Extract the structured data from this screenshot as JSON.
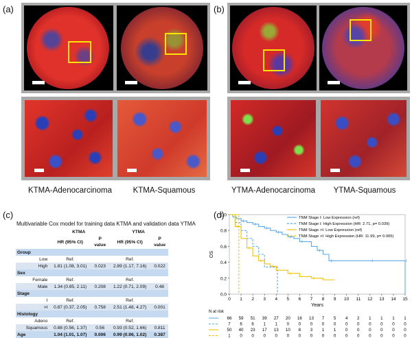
{
  "panels": {
    "a_label": "(a)",
    "b_label": "(b)",
    "c_label": "(c)",
    "d_label": "(d)",
    "captions": [
      "KTMA-Adenocarcinoma",
      "KTMA-Squamous",
      "YTMA-Adenocarcinoma",
      "YTMA-Squamous"
    ]
  },
  "colors": {
    "frame": "#a9a9a9",
    "highlight_box": "#ffe600",
    "table_group_row": "#c5d9f1",
    "table_shade_row": "#dbe5f1",
    "stage1_low": "#5aa9e6",
    "stage1_high": "#5aa9e6",
    "stage2_low": "#f2c200",
    "stage2_high": "#f2c200"
  },
  "table": {
    "title": "Multivariable Cox model for training data KTMA and validation data YTMA",
    "cohorts": [
      "KTMA",
      "YTMA"
    ],
    "col_headers": [
      "HR (95% CI)",
      "P value",
      "HR (95% CI)",
      "P value"
    ],
    "rows": [
      {
        "type": "group",
        "label": "Group"
      },
      {
        "type": "row",
        "label": "Low",
        "k_hr": "Ref.",
        "k_p": "",
        "y_hr": "Ref.",
        "y_p": ""
      },
      {
        "type": "row",
        "label": "High",
        "k_hr": "1.81 (1.08, 3.01)",
        "k_p": "0.023",
        "y_hr": "2.89 (1.17, 7.16)",
        "y_p": "0.022"
      },
      {
        "type": "group",
        "label": "Sex"
      },
      {
        "type": "row",
        "label": "Female",
        "k_hr": "Ref.",
        "k_p": "",
        "y_hr": "Ref.",
        "y_p": ""
      },
      {
        "type": "row",
        "label": "Male",
        "k_hr": "1.34 (0.85, 2.11)",
        "k_p": "0.208",
        "y_hr": "1.22 (0.71, 2.09)",
        "y_p": "0.48"
      },
      {
        "type": "group",
        "label": "Stage"
      },
      {
        "type": "row",
        "label": "I",
        "k_hr": "Ref.",
        "k_p": "",
        "y_hr": "Ref.",
        "y_p": ""
      },
      {
        "type": "row",
        "label": ">I",
        "k_hr": "0.87 (0.37, 2.05)",
        "k_p": "0.758",
        "y_hr": "2.51 (1.48, 4.27)",
        "y_p": "0.001"
      },
      {
        "type": "group",
        "label": "Histology"
      },
      {
        "type": "row",
        "label": "Adeno",
        "k_hr": "Ref.",
        "k_p": "",
        "y_hr": "Ref.",
        "y_p": ""
      },
      {
        "type": "row",
        "label": "Squamous",
        "k_hr": "0.88 (0.56, 1.37)",
        "k_p": "0.56",
        "y_hr": "0.93 (0.52, 1.66)",
        "y_p": "0.811"
      },
      {
        "type": "group",
        "label": "Age",
        "k_hr": "1.04 (1.01, 1.07)",
        "k_p": "0.006",
        "y_hr": "0.99 (0.96, 1.02)",
        "y_p": "0.387"
      }
    ]
  },
  "chart_data": {
    "type": "line",
    "title": "",
    "xlabel": "Years",
    "ylabel": "OS",
    "xlim": [
      0,
      15
    ],
    "ylim": [
      0,
      1.0
    ],
    "xticks": [
      0,
      1,
      2,
      3,
      4,
      5,
      6,
      7,
      8,
      9,
      10,
      11,
      12,
      13,
      14,
      15
    ],
    "yticks": [
      "0.0",
      "0.2",
      "0.4",
      "0.6",
      "0.8",
      "1.0"
    ],
    "legend_position": "top-right",
    "series": [
      {
        "name": "TNM Stage I: Low Expression (ref)",
        "style": "solid",
        "color": "#5aa9e6",
        "x": [
          0,
          0.3,
          0.6,
          1.0,
          1.5,
          2.0,
          2.5,
          3.0,
          3.5,
          4.0,
          4.5,
          5.0,
          5.5,
          6.0,
          7.0,
          7.5,
          8.0,
          8.5,
          10,
          12,
          14,
          14.9,
          15
        ],
        "y": [
          1.0,
          0.97,
          0.95,
          0.92,
          0.9,
          0.88,
          0.85,
          0.83,
          0.8,
          0.78,
          0.75,
          0.72,
          0.7,
          0.66,
          0.6,
          0.55,
          0.5,
          0.42,
          0.42,
          0.42,
          0.42,
          0.42,
          0.0
        ]
      },
      {
        "name": "TNM Stage I: High Expression (HR: 2.71, p= 0.039)",
        "style": "dashed",
        "color": "#5aa9e6",
        "x": [
          0,
          0.5,
          1.0,
          1.5,
          2.0,
          2.5,
          3.0,
          4.0,
          4.1
        ],
        "y": [
          1.0,
          0.9,
          0.8,
          0.7,
          0.6,
          0.5,
          0.34,
          0.34,
          0.0
        ]
      },
      {
        "name": "TNM Stage >I: Low Expression (ref)",
        "style": "solid",
        "color": "#f2c200",
        "x": [
          0,
          0.5,
          1.0,
          1.5,
          2.0,
          2.5,
          3.0,
          3.5,
          4.0,
          5.0,
          6.0,
          7.0,
          8.0,
          9.0
        ],
        "y": [
          1.0,
          0.85,
          0.7,
          0.58,
          0.48,
          0.42,
          0.38,
          0.35,
          0.3,
          0.26,
          0.22,
          0.2,
          0.18,
          0.18
        ]
      },
      {
        "name": "TNM Stage >I: High Expression (HR: 11.99, p= 0.005)",
        "style": "dashed",
        "color": "#f2c200",
        "x": [
          0,
          0.5,
          0.8,
          0.81
        ],
        "y": [
          1.0,
          1.0,
          1.0,
          0.0
        ]
      }
    ],
    "at_risk_label": "N at risk",
    "at_risk": [
      [
        66,
        59,
        51,
        39,
        27,
        20,
        16,
        13,
        7,
        5,
        4,
        2,
        1,
        1,
        1,
        1
      ],
      [
        7,
        6,
        6,
        1,
        1,
        0,
        0,
        0,
        0,
        0,
        0,
        0,
        0,
        0,
        0,
        0
      ],
      [
        50,
        40,
        23,
        17,
        13,
        10,
        8,
        3,
        1,
        1,
        0,
        0,
        0,
        0,
        0,
        0
      ],
      [
        1,
        0,
        0,
        0,
        0,
        0,
        0,
        0,
        0,
        0,
        0,
        0,
        0,
        0,
        0,
        0
      ]
    ]
  }
}
